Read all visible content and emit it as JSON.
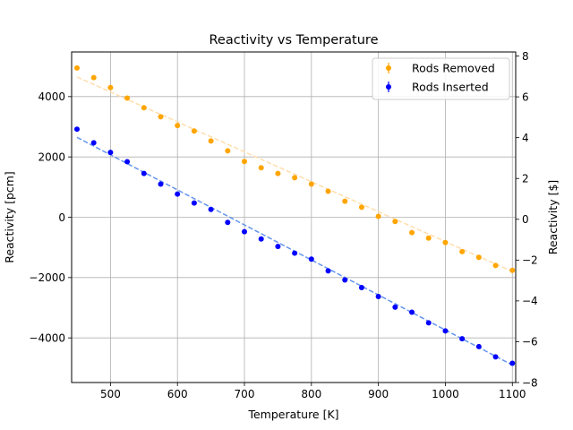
{
  "chart_data": {
    "type": "scatter",
    "title": "Reactivity vs Temperature",
    "xlabel": "Temperature [K]",
    "ylabel": "Reactivity [pcm]",
    "ylabel_right": "Reactivity [$]",
    "xlim": [
      442,
      1105
    ],
    "ylim": [
      -5480,
      5480
    ],
    "ylim_right": [
      -8.0,
      8.2
    ],
    "x_ticks": [
      500,
      600,
      700,
      800,
      900,
      1000,
      1100
    ],
    "y_ticks": [
      -4000,
      -2000,
      0,
      2000,
      4000
    ],
    "y_ticks_right": [
      -8,
      -6,
      -4,
      -2,
      0,
      2,
      4,
      6,
      8
    ],
    "grid": true,
    "legend_position": "top-right",
    "series": [
      {
        "name": "Rods Removed",
        "color": "#ffa500",
        "fit_color": "#ffdead",
        "fit": {
          "x": [
            450,
            1100
          ],
          "y": [
            4650,
            -1800
          ]
        },
        "x": [
          450,
          475,
          500,
          525,
          550,
          575,
          600,
          625,
          650,
          675,
          700,
          725,
          750,
          775,
          800,
          825,
          850,
          875,
          900,
          925,
          950,
          975,
          1000,
          1025,
          1050,
          1075,
          1100
        ],
        "y": [
          4950,
          4630,
          4300,
          3950,
          3630,
          3330,
          3040,
          2860,
          2530,
          2200,
          1850,
          1640,
          1450,
          1310,
          1100,
          860,
          530,
          330,
          30,
          -140,
          -510,
          -690,
          -840,
          -1140,
          -1330,
          -1600,
          -1760
        ]
      },
      {
        "name": "Rods Inserted",
        "color": "#0000ff",
        "fit_color": "#6495ed",
        "fit": {
          "x": [
            450,
            1100
          ],
          "y": [
            2650,
            -4900
          ]
        },
        "x": [
          450,
          475,
          500,
          525,
          550,
          575,
          600,
          625,
          650,
          675,
          700,
          725,
          750,
          775,
          800,
          825,
          850,
          875,
          900,
          925,
          950,
          975,
          1000,
          1025,
          1050,
          1075,
          1100
        ],
        "y": [
          2920,
          2470,
          2150,
          1840,
          1450,
          1100,
          770,
          470,
          260,
          -170,
          -480,
          -720,
          -970,
          -1190,
          -1390,
          -1780,
          -2080,
          -2330,
          -2630,
          -2980,
          -3150,
          -3500,
          -3770,
          -4030,
          -4290,
          -4630,
          -4840
        ]
      }
    ]
  }
}
